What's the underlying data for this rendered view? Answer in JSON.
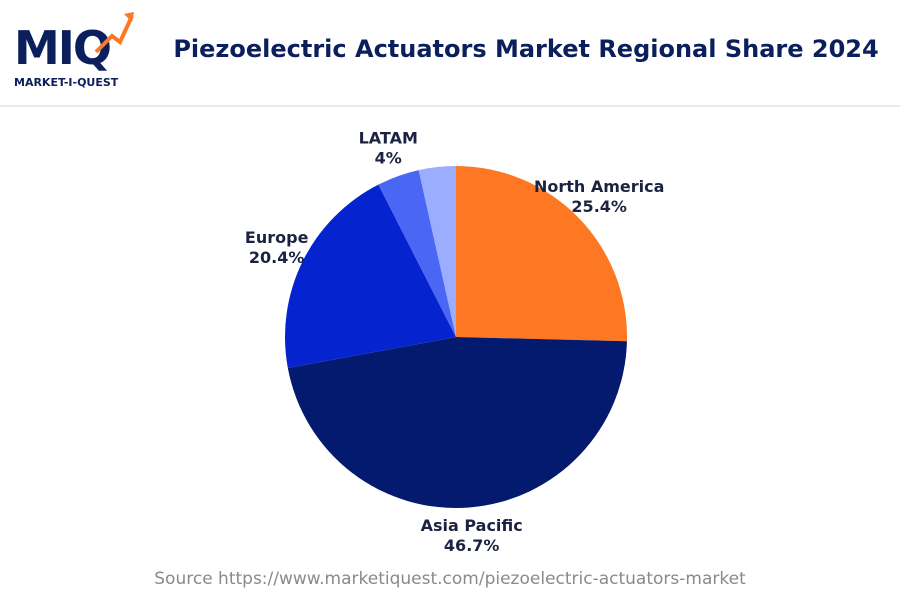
{
  "header": {
    "logo": "MIQ",
    "logo_tagline": "MARKET-I-QUEST"
  },
  "chart_data": {
    "type": "pie",
    "title": "Piezoelectric Actuators Market Regional Share 2024",
    "categories": [
      "North America",
      "Asia Pacific",
      "Europe",
      "LATAM",
      null
    ],
    "values": [
      25.4,
      46.7,
      20.4,
      4,
      3.5
    ],
    "value_labels": [
      "25.4%",
      "46.7%",
      "20.4%",
      "4%",
      null
    ],
    "colors": [
      "#fe7722",
      "#031a6e",
      "#0524d0",
      "#4a66f5",
      "#9badff"
    ],
    "source": "Source https://www.marketiquest.com/piezoelectric-actuators-market"
  }
}
